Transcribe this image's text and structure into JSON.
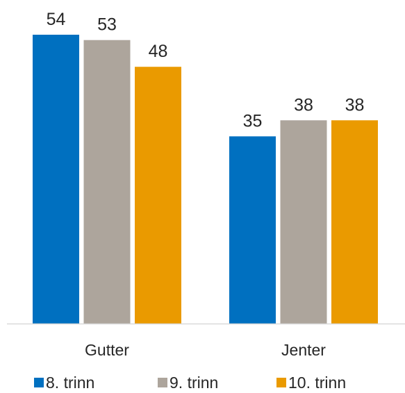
{
  "chart_data": {
    "type": "bar",
    "categories": [
      "Gutter",
      "Jenter"
    ],
    "series": [
      {
        "name": "8. trinn",
        "values": [
          54,
          35
        ],
        "color": "#0070C0"
      },
      {
        "name": "9. trinn",
        "values": [
          53,
          38
        ],
        "color": "#ADA59C"
      },
      {
        "name": "10. trinn",
        "values": [
          48,
          38
        ],
        "color": "#EA9A00"
      }
    ],
    "title": "",
    "xlabel": "",
    "ylabel": "",
    "ylim": [
      0,
      54
    ],
    "grid": false,
    "legend_position": "bottom",
    "data_labels": true
  }
}
